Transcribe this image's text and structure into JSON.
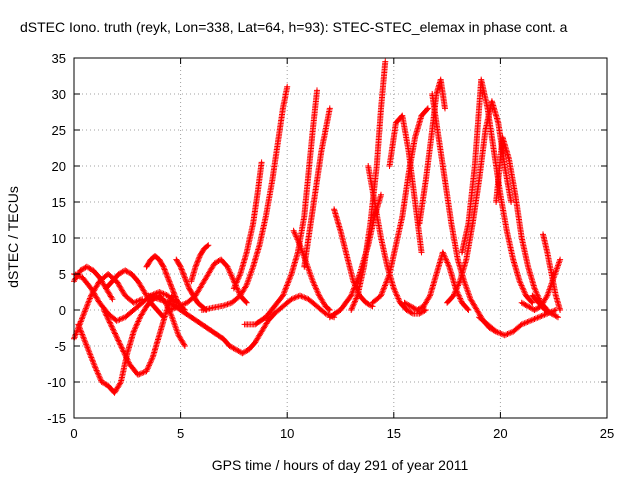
{
  "chart_data": {
    "type": "scatter",
    "title": "dSTEC Iono. truth (reyk, Lon=338, Lat=64, h=93): STEC-STEC_elemax in phase cont. a",
    "xlabel": "GPS time / hours of day 291 of year 2011",
    "ylabel": "dSTEC  / TECUs",
    "xlim": [
      0,
      25
    ],
    "ylim": [
      -15,
      35
    ],
    "x_ticks": [
      0,
      5,
      10,
      15,
      20,
      25
    ],
    "y_ticks": [
      -15,
      -10,
      -5,
      0,
      5,
      10,
      15,
      20,
      25,
      30,
      35
    ],
    "grid": true,
    "marker": "+",
    "color": "#ff0000",
    "series": [
      {
        "x": [
          0.0,
          0.4,
          0.8,
          1.2,
          1.6,
          2.0,
          2.4,
          2.8,
          3.2
        ],
        "y": [
          -4.0,
          -1.0,
          2.0,
          4.0,
          5.0,
          4.0,
          2.0,
          1.0,
          1.5
        ]
      },
      {
        "x": [
          0.0,
          0.4,
          0.8,
          1.2,
          1.6,
          2.0,
          2.4,
          2.8,
          3.2,
          3.6,
          4.0,
          4.4,
          4.8
        ],
        "y": [
          5.0,
          4.5,
          3.0,
          1.0,
          -0.5,
          -1.5,
          -1.0,
          0.0,
          1.0,
          2.0,
          2.5,
          2.0,
          1.0
        ]
      },
      {
        "x": [
          0.2,
          0.6,
          1.0,
          1.3,
          1.6,
          1.9,
          2.2,
          2.5,
          2.8,
          3.1,
          3.4,
          3.7,
          4.0,
          4.3,
          4.6,
          4.9,
          5.2
        ],
        "y": [
          -2.0,
          -5.0,
          -8.0,
          -10.0,
          -10.5,
          -11.5,
          -10.0,
          -6.0,
          -3.0,
          -1.0,
          0.5,
          1.5,
          2.0,
          1.0,
          -1.0,
          -3.5,
          -5.0
        ]
      },
      {
        "x": [
          0.0,
          0.3,
          0.6,
          0.9,
          1.2,
          1.5,
          1.8
        ],
        "y": [
          4.0,
          5.5,
          6.0,
          5.5,
          4.5,
          3.0,
          1.5
        ]
      },
      {
        "x": [
          1.4,
          1.8,
          2.2,
          2.6,
          3.0,
          3.4,
          3.7,
          4.0,
          4.3,
          4.6
        ],
        "y": [
          0.0,
          -2.5,
          -5.0,
          -7.5,
          -9.0,
          -8.5,
          -6.5,
          -3.5,
          -0.5,
          2.0
        ]
      },
      {
        "x": [
          1.5,
          1.8,
          2.1,
          2.4,
          2.7,
          3.0,
          3.3,
          3.6,
          3.9,
          4.2
        ],
        "y": [
          3.0,
          4.0,
          5.0,
          5.5,
          5.0,
          4.0,
          2.5,
          1.0,
          0.0,
          -1.0
        ]
      },
      {
        "x": [
          3.4,
          3.6,
          3.8,
          4.0,
          4.2,
          4.4,
          4.6,
          4.8,
          5.0,
          5.2
        ],
        "y": [
          6.0,
          7.0,
          7.5,
          7.0,
          6.0,
          4.5,
          3.0,
          1.5,
          0.5,
          0.0
        ]
      },
      {
        "x": [
          4.8,
          5.0,
          5.2,
          5.4,
          5.6,
          5.8,
          6.0,
          6.2
        ],
        "y": [
          7.0,
          6.0,
          4.5,
          3.0,
          2.0,
          1.0,
          0.5,
          0.0
        ]
      },
      {
        "x": [
          4.5,
          4.9,
          5.3,
          5.7,
          6.0,
          6.3,
          6.6,
          6.9,
          7.2,
          7.5,
          7.8,
          8.1
        ],
        "y": [
          0.0,
          0.5,
          1.0,
          2.0,
          3.5,
          5.0,
          6.5,
          7.0,
          6.0,
          4.0,
          2.0,
          1.0
        ]
      },
      {
        "x": [
          5.5,
          5.7,
          5.9,
          6.1,
          6.3
        ],
        "y": [
          4.0,
          6.0,
          7.5,
          8.5,
          9.0
        ]
      },
      {
        "x": [
          3.5,
          4.0,
          4.5,
          5.0,
          5.5,
          6.0,
          6.5,
          7.0,
          7.3,
          7.6,
          7.9,
          8.2,
          8.5,
          8.8,
          9.1,
          9.4,
          9.8,
          10.2,
          10.6,
          11.0,
          11.4,
          11.8,
          12.2
        ],
        "y": [
          2.0,
          1.5,
          1.0,
          0.0,
          -1.0,
          -2.0,
          -3.0,
          -4.0,
          -5.0,
          -5.5,
          -6.0,
          -5.5,
          -4.5,
          -3.0,
          -1.5,
          -0.5,
          0.5,
          1.5,
          2.0,
          1.5,
          0.5,
          -0.5,
          -1.0
        ]
      },
      {
        "x": [
          6.0,
          6.5,
          7.0,
          7.4,
          7.8,
          8.1,
          8.4,
          8.7,
          9.0,
          9.3,
          9.6,
          9.8,
          10.0
        ],
        "y": [
          0.0,
          0.3,
          0.6,
          1.0,
          2.0,
          3.5,
          6.0,
          9.0,
          13.0,
          18.0,
          24.0,
          28.0,
          31.0
        ]
      },
      {
        "x": [
          7.5,
          7.8,
          8.1,
          8.4,
          8.6,
          8.8
        ],
        "y": [
          3.0,
          5.0,
          8.0,
          12.0,
          16.0,
          20.5
        ]
      },
      {
        "x": [
          8.0,
          8.5,
          9.0,
          9.4,
          9.8,
          10.2,
          10.5,
          10.8,
          11.0,
          11.2,
          11.4
        ],
        "y": [
          -2.0,
          -2.0,
          -1.0,
          0.5,
          2.0,
          5.0,
          8.0,
          13.0,
          19.0,
          25.0,
          30.5
        ]
      },
      {
        "x": [
          10.3,
          10.6,
          10.9,
          11.2,
          11.5,
          11.8,
          12.0
        ],
        "y": [
          11.0,
          9.0,
          6.5,
          4.0,
          2.0,
          0.5,
          0.0
        ]
      },
      {
        "x": [
          10.8,
          11.0,
          11.2,
          11.4,
          11.6,
          11.8,
          12.0
        ],
        "y": [
          6.0,
          10.0,
          14.0,
          18.0,
          22.0,
          25.0,
          28.0
        ]
      },
      {
        "x": [
          12.0,
          12.5,
          13.0,
          13.4,
          13.8,
          14.1,
          14.4
        ],
        "y": [
          -1.0,
          0.0,
          2.0,
          5.0,
          9.0,
          13.0,
          16.0
        ]
      },
      {
        "x": [
          12.2,
          12.5,
          12.8,
          13.1,
          13.4,
          13.7,
          14.0
        ],
        "y": [
          14.0,
          11.0,
          7.5,
          4.0,
          2.0,
          1.0,
          0.5
        ]
      },
      {
        "x": [
          13.0,
          13.3,
          13.6,
          13.9,
          14.2,
          14.4,
          14.6
        ],
        "y": [
          0.0,
          2.0,
          6.0,
          12.0,
          20.0,
          28.0,
          34.5
        ]
      },
      {
        "x": [
          13.8,
          14.1,
          14.4,
          14.7,
          15.0,
          15.3,
          15.6,
          15.9,
          16.2,
          16.5
        ],
        "y": [
          20.0,
          15.0,
          10.0,
          6.0,
          3.0,
          1.0,
          0.0,
          -0.5,
          -0.5,
          0.0
        ]
      },
      {
        "x": [
          14.0,
          14.4,
          14.8,
          15.1,
          15.4,
          15.7,
          16.0,
          16.3,
          16.6
        ],
        "y": [
          1.0,
          2.0,
          5.0,
          9.0,
          13.0,
          19.0,
          24.0,
          27.0,
          28.0
        ]
      },
      {
        "x": [
          14.8,
          15.1,
          15.4,
          15.7,
          16.0,
          16.3
        ],
        "y": [
          20.0,
          26.0,
          27.0,
          22.0,
          15.0,
          8.0
        ]
      },
      {
        "x": [
          15.5,
          15.8,
          16.1,
          16.4,
          16.7,
          17.0,
          17.3,
          17.6,
          17.9,
          18.2,
          18.5
        ],
        "y": [
          1.0,
          0.5,
          0.0,
          0.5,
          2.0,
          5.0,
          8.0,
          6.0,
          3.0,
          1.0,
          0.0
        ]
      },
      {
        "x": [
          16.2,
          16.5,
          16.8,
          17.0,
          17.2,
          17.4
        ],
        "y": [
          12.0,
          18.0,
          25.0,
          30.0,
          32.0,
          28.0
        ]
      },
      {
        "x": [
          16.8,
          17.1,
          17.4,
          17.7,
          18.0,
          18.3,
          18.6,
          18.9,
          19.2,
          19.5,
          19.8
        ],
        "y": [
          30.0,
          24.0,
          18.0,
          12.0,
          7.0,
          4.0,
          1.5,
          0.0,
          -1.5,
          -2.5,
          -3.0
        ]
      },
      {
        "x": [
          17.5,
          17.8,
          18.1,
          18.4,
          18.7,
          19.0,
          19.3,
          19.6,
          19.9,
          20.2,
          20.5
        ],
        "y": [
          1.0,
          2.0,
          4.0,
          7.0,
          12.0,
          18.0,
          25.0,
          29.0,
          26.0,
          20.0,
          15.0
        ]
      },
      {
        "x": [
          18.2,
          18.5,
          18.8,
          19.1,
          19.4,
          19.7,
          20.0,
          20.3,
          20.6,
          20.9,
          21.2,
          21.5
        ],
        "y": [
          8.0,
          12.0,
          20.0,
          32.0,
          28.0,
          22.0,
          16.0,
          11.0,
          7.0,
          4.0,
          2.0,
          1.0
        ]
      },
      {
        "x": [
          19.8,
          20.1,
          20.4,
          20.7,
          21.0,
          21.3,
          21.6,
          21.9,
          22.2
        ],
        "y": [
          15.0,
          24.0,
          21.0,
          16.0,
          10.0,
          6.0,
          3.0,
          1.0,
          0.0
        ]
      },
      {
        "x": [
          19.0,
          19.4,
          19.8,
          20.2,
          20.6,
          21.0,
          21.4,
          21.8,
          22.2,
          22.6
        ],
        "y": [
          -1.0,
          -2.0,
          -3.0,
          -3.5,
          -3.0,
          -2.0,
          -1.5,
          -1.0,
          -0.5,
          0.0
        ]
      },
      {
        "x": [
          21.0,
          21.3,
          21.6,
          21.9,
          22.2,
          22.5,
          22.8
        ],
        "y": [
          1.0,
          0.5,
          0.0,
          0.5,
          2.0,
          4.5,
          7.0
        ]
      },
      {
        "x": [
          22.0,
          22.2,
          22.4,
          22.6,
          22.8
        ],
        "y": [
          10.5,
          8.0,
          5.0,
          2.0,
          0.0
        ]
      },
      {
        "x": [
          21.5,
          21.8,
          22.1,
          22.4,
          22.7
        ],
        "y": [
          2.0,
          1.0,
          0.0,
          -0.5,
          -1.0
        ]
      }
    ]
  }
}
